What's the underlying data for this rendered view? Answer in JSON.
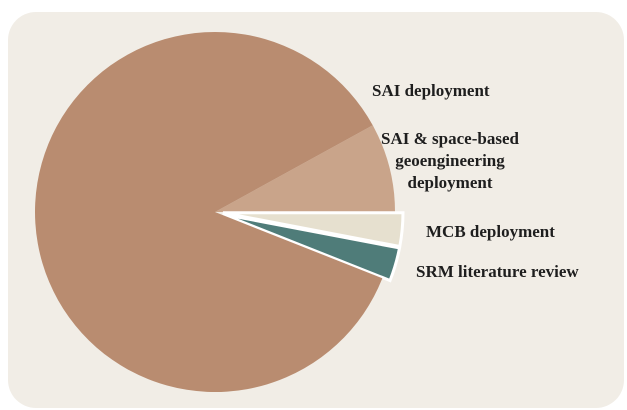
{
  "chart_data": {
    "type": "pie",
    "categories": [
      "SAI & space-based geoengineering deployment",
      "MCB deployment",
      "SRM literature review",
      "SAI deployment"
    ],
    "values": [
      8,
      3,
      3,
      86
    ],
    "colors": [
      "#c9a48a",
      "#e6e0cf",
      "#4f7c79",
      "#b98c70"
    ],
    "exploded": [
      false,
      true,
      true,
      false
    ]
  }
}
